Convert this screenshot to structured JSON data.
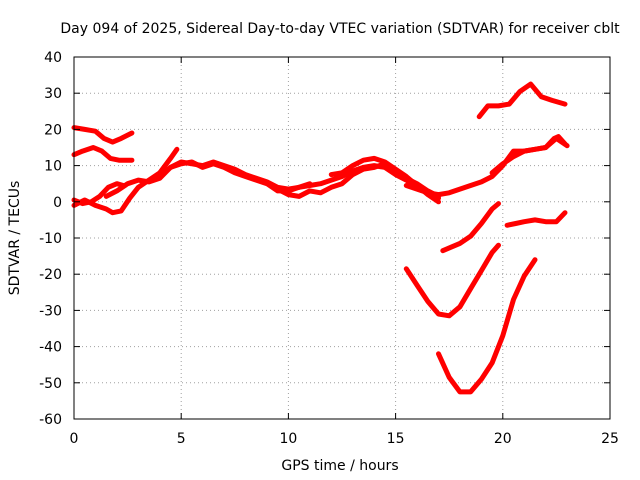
{
  "chart_data": {
    "type": "line",
    "title": "Day 094 of 2025, Sidereal Day-to-day VTEC variation (SDTVAR) for receiver cblt",
    "xlabel": "GPS time / hours",
    "ylabel": "SDTVAR / TECUs",
    "xlim": [
      0,
      25
    ],
    "ylim": [
      -60,
      40
    ],
    "xticks": [
      0,
      5,
      10,
      15,
      20,
      25
    ],
    "yticks": [
      -60,
      -50,
      -40,
      -30,
      -20,
      -10,
      0,
      10,
      20,
      30,
      40
    ],
    "grid": true,
    "series_color": "#ff0000",
    "series": [
      {
        "name": "arc-1",
        "x": [
          0.0,
          0.5,
          1.0,
          1.4,
          1.8,
          2.2,
          2.7
        ],
        "y": [
          20.5,
          20.0,
          19.5,
          17.5,
          16.5,
          17.5,
          19.0
        ]
      },
      {
        "name": "arc-2",
        "x": [
          0.0,
          0.4,
          0.9,
          1.3,
          1.7,
          2.1,
          2.7
        ],
        "y": [
          13.0,
          14.0,
          15.0,
          14.0,
          12.0,
          11.5,
          11.5
        ]
      },
      {
        "name": "arc-3",
        "x": [
          0.0,
          0.4,
          0.8,
          1.2,
          1.6,
          2.0,
          2.3
        ],
        "y": [
          0.5,
          -0.5,
          0.0,
          1.5,
          4.0,
          5.0,
          4.5
        ]
      },
      {
        "name": "arc-4",
        "x": [
          0.0,
          0.5,
          1.0,
          1.5,
          1.8,
          2.2,
          2.6,
          3.0,
          3.5,
          4.0,
          4.5,
          4.8
        ],
        "y": [
          -1.0,
          0.5,
          -1.0,
          -2.0,
          -3.0,
          -2.5,
          1.0,
          4.0,
          6.0,
          8.0,
          12.0,
          14.5
        ]
      },
      {
        "name": "arc-5",
        "x": [
          1.5,
          2.0,
          2.5,
          3.0,
          3.5,
          4.0,
          4.5,
          5.0,
          5.5,
          6.0,
          6.5,
          7.0,
          7.5,
          8.0,
          8.5,
          9.0,
          9.5,
          10.0,
          10.5,
          11.0
        ],
        "y": [
          1.5,
          3.0,
          5.0,
          6.0,
          5.5,
          6.5,
          9.5,
          11.0,
          10.5,
          10.0,
          11.0,
          10.0,
          9.0,
          7.5,
          6.5,
          5.5,
          4.0,
          3.5,
          4.0,
          5.0
        ]
      },
      {
        "name": "arc-6",
        "x": [
          4.0,
          4.5,
          5.0,
          5.5,
          6.0,
          6.5,
          7.0,
          7.5,
          8.0,
          8.5,
          9.0,
          9.5,
          10.0,
          10.5,
          11.0,
          11.5,
          12.0,
          12.5,
          13.0,
          13.5,
          14.0,
          14.5,
          15.0,
          15.5,
          16.0,
          16.5,
          17.0
        ],
        "y": [
          7.0,
          9.5,
          10.5,
          11.0,
          9.5,
          10.5,
          9.5,
          8.0,
          7.0,
          6.0,
          5.0,
          3.0,
          3.0,
          4.0,
          4.5,
          5.0,
          6.0,
          7.0,
          8.5,
          9.5,
          10.0,
          9.5,
          7.5,
          6.0,
          4.0,
          2.5,
          1.0
        ]
      },
      {
        "name": "arc-7",
        "x": [
          9.5,
          10.0,
          10.5,
          11.0,
          11.5,
          12.0,
          12.5,
          13.0,
          13.5,
          14.0,
          14.5,
          15.0,
          15.5,
          16.0,
          16.5,
          17.0
        ],
        "y": [
          3.5,
          2.0,
          1.5,
          3.0,
          2.5,
          4.0,
          5.0,
          7.5,
          9.0,
          9.5,
          10.5,
          8.5,
          6.5,
          5.0,
          3.0,
          1.5
        ]
      },
      {
        "name": "arc-8",
        "x": [
          12.0,
          12.5,
          13.0,
          13.5,
          14.0,
          14.5,
          15.0,
          15.5,
          16.0,
          16.5,
          17.0
        ],
        "y": [
          7.5,
          8.0,
          10.0,
          11.5,
          12.0,
          11.0,
          9.0,
          7.0,
          4.5,
          2.0,
          0.0
        ]
      },
      {
        "name": "arc-9",
        "x": [
          15.5,
          16.0,
          16.5,
          17.0,
          17.5,
          18.0,
          18.5,
          19.0,
          19.5,
          20.0,
          20.5,
          21.0,
          21.5,
          22.0,
          22.5,
          23.0
        ],
        "y": [
          4.5,
          3.5,
          2.5,
          2.0,
          2.5,
          3.5,
          4.5,
          5.5,
          7.0,
          10.0,
          14.0,
          14.0,
          14.5,
          15.0,
          17.5,
          15.5
        ]
      },
      {
        "name": "arc-10",
        "x": [
          19.5,
          20.0,
          20.5,
          21.0,
          21.5,
          22.0,
          22.4,
          22.6,
          22.9
        ],
        "y": [
          8.0,
          10.5,
          12.5,
          14.0,
          14.5,
          15.0,
          17.5,
          18.0,
          16.0
        ]
      },
      {
        "name": "arc-11",
        "x": [
          18.9,
          19.3,
          19.8,
          20.3,
          20.8,
          21.3,
          21.8,
          22.3,
          22.9
        ],
        "y": [
          23.5,
          26.5,
          26.5,
          27.0,
          30.5,
          32.5,
          29.0,
          28.0,
          27.0
        ]
      },
      {
        "name": "arc-12",
        "x": [
          17.2,
          17.6,
          18.0,
          18.5,
          19.0,
          19.5,
          19.8
        ],
        "y": [
          -13.5,
          -12.5,
          -11.5,
          -9.5,
          -6.0,
          -2.0,
          -0.5
        ]
      },
      {
        "name": "arc-13",
        "x": [
          20.2,
          20.6,
          21.0,
          21.5,
          22.0,
          22.5,
          22.9
        ],
        "y": [
          -6.5,
          -6.0,
          -5.5,
          -5.0,
          -5.5,
          -5.5,
          -3.0
        ]
      },
      {
        "name": "arc-14",
        "x": [
          15.5,
          16.0,
          16.5,
          17.0,
          17.5,
          18.0,
          18.5,
          19.0,
          19.5,
          19.8
        ],
        "y": [
          -18.5,
          -23.0,
          -27.5,
          -31.0,
          -31.5,
          -29.0,
          -24.0,
          -19.0,
          -14.0,
          -12.0
        ]
      },
      {
        "name": "arc-15",
        "x": [
          17.0,
          17.5,
          18.0,
          18.5,
          19.0,
          19.5,
          20.0,
          20.5,
          21.0,
          21.5
        ],
        "y": [
          -42.0,
          -48.5,
          -52.5,
          -52.5,
          -49.0,
          -44.5,
          -37.0,
          -27.0,
          -20.5,
          -16.0
        ]
      }
    ]
  }
}
